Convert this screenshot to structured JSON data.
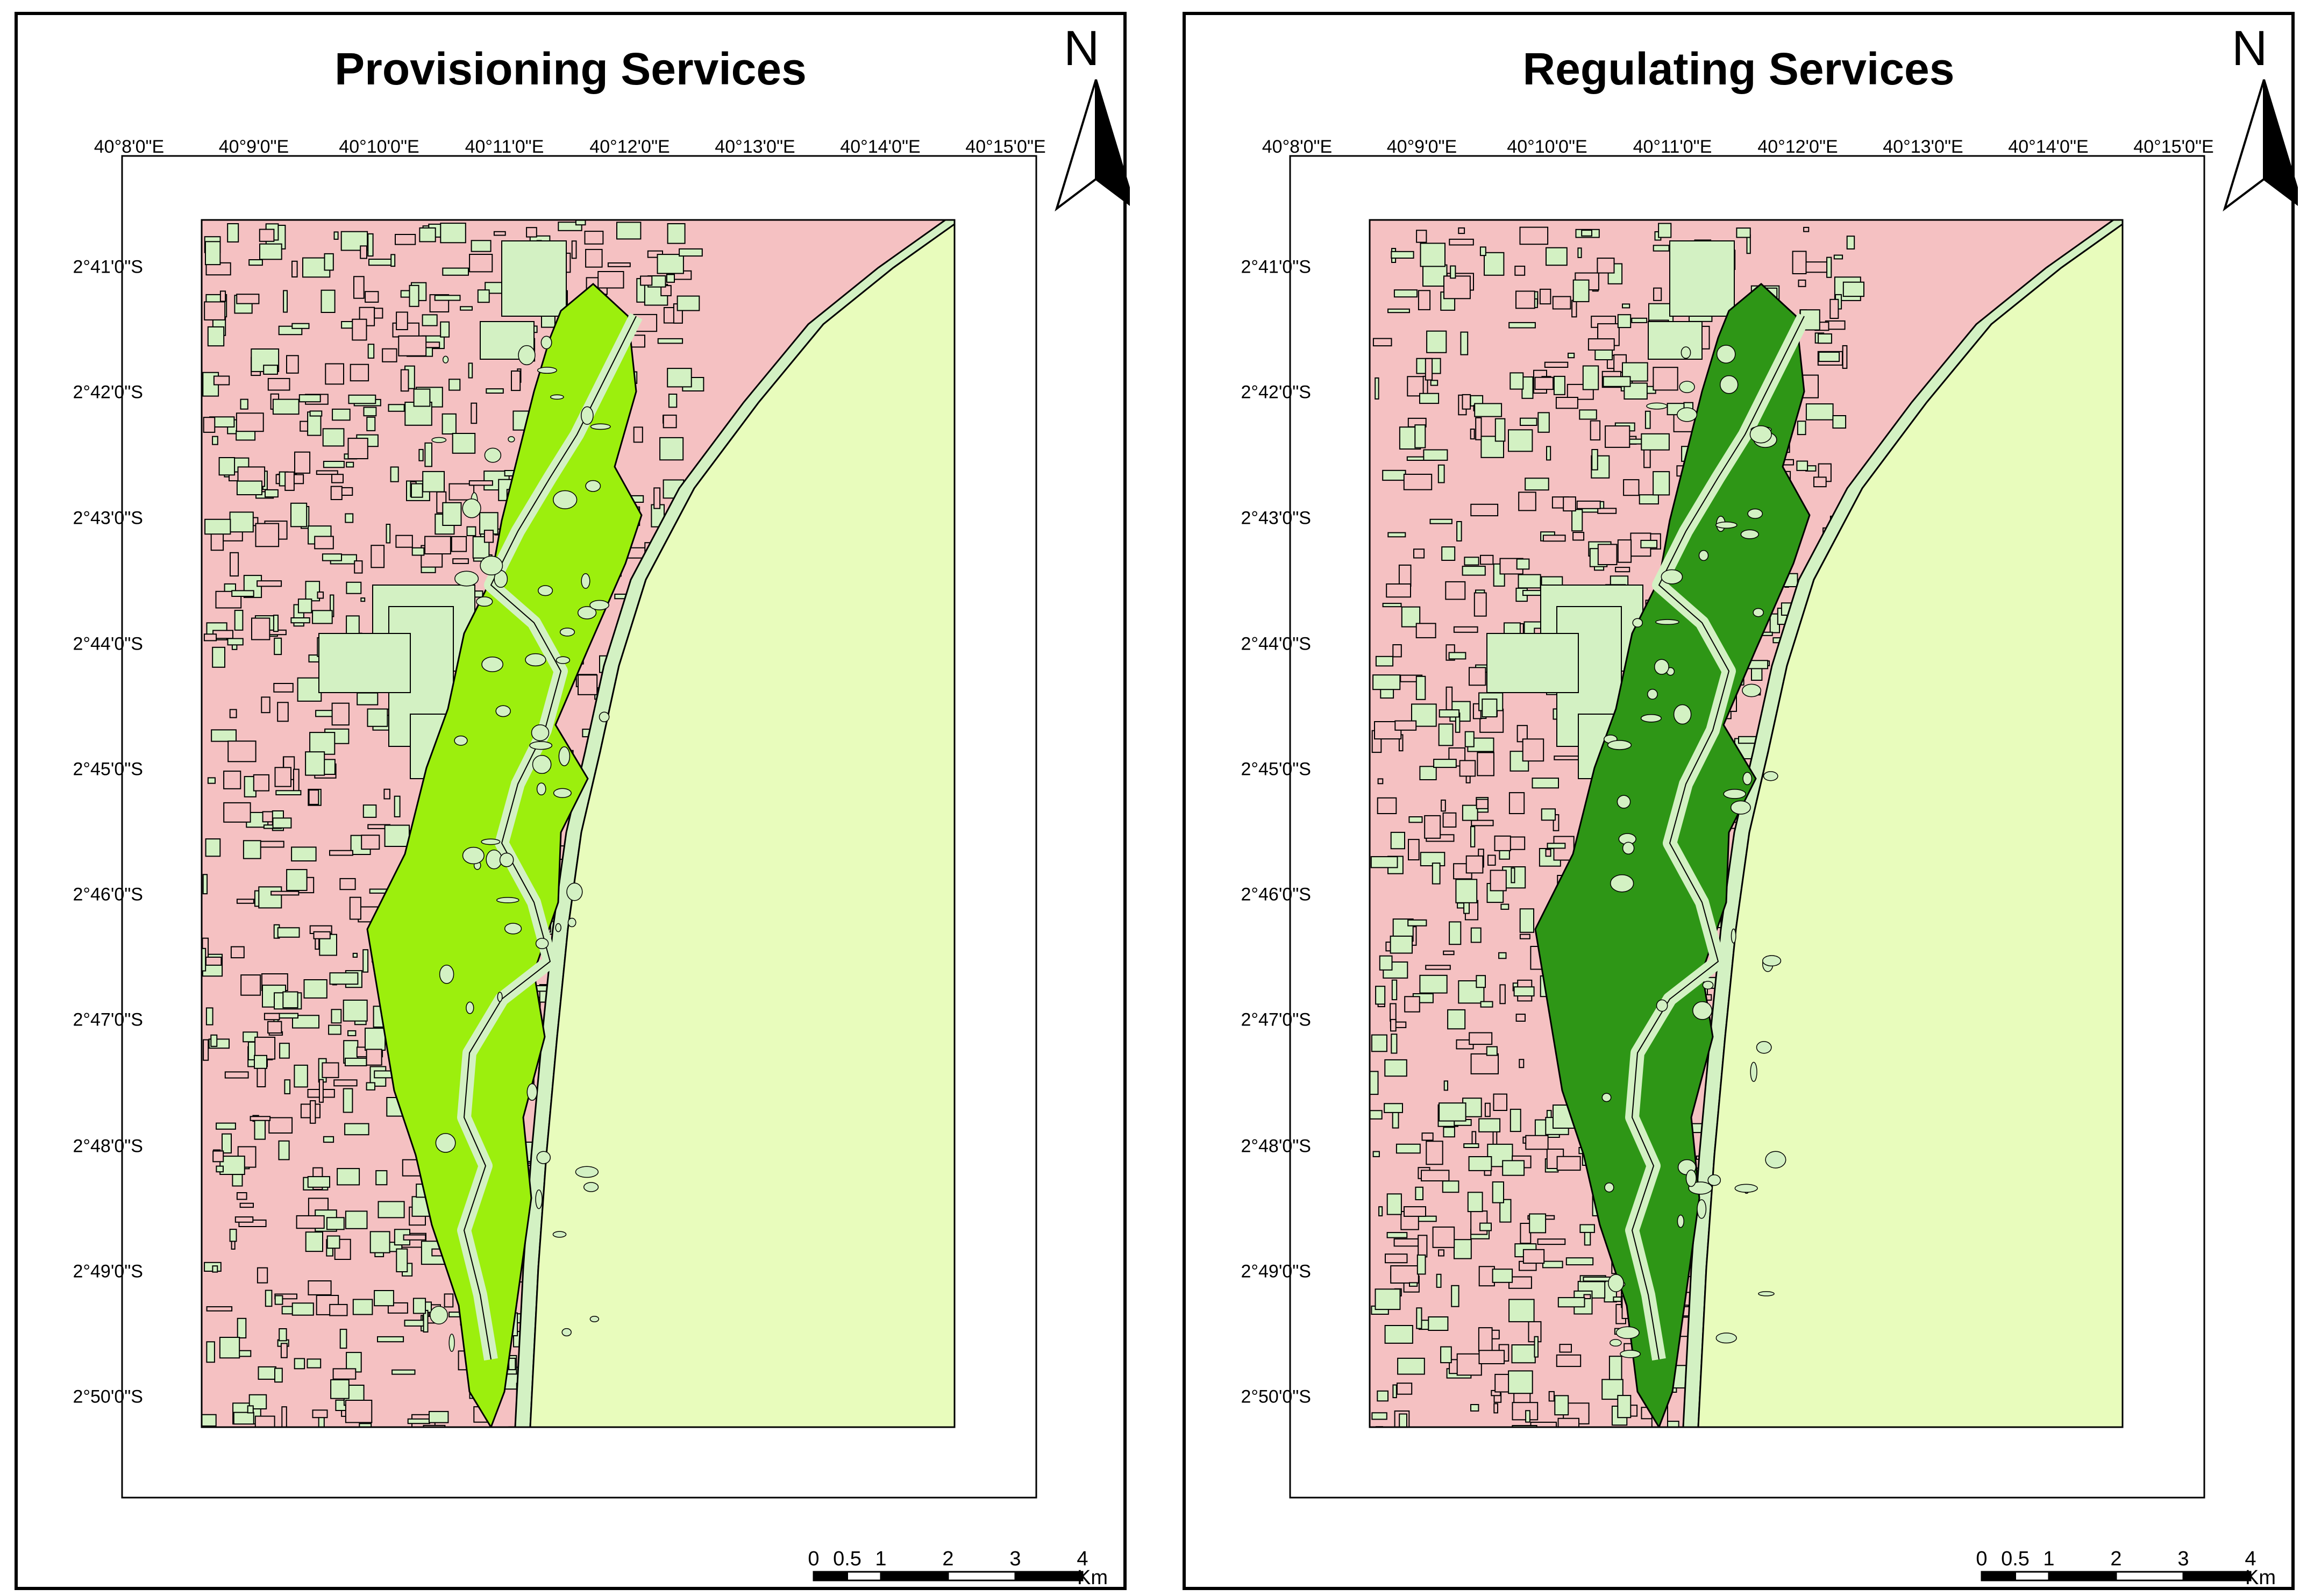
{
  "colors": {
    "land": "#f5c1c2",
    "land_patch": "#d3f1c3",
    "ocean": "#e8fcbc",
    "provisioning_mangrove": "#9cef0d",
    "regulating_mangrove": "#2e9616",
    "outline": "#000000"
  },
  "panels": [
    {
      "id": "provisioning",
      "title": "Provisioning Services",
      "mangrove_color": "#9cef0d",
      "north_label": "N",
      "lon_labels": [
        "40°8'0\"E",
        "40°9'0\"E",
        "40°10'0\"E",
        "40°11'0\"E",
        "40°12'0\"E",
        "40°13'0\"E",
        "40°14'0\"E",
        "40°15'0\"E"
      ],
      "lat_labels": [
        "2°41'0\"S",
        "2°42'0\"S",
        "2°43'0\"S",
        "2°44'0\"S",
        "2°45'0\"S",
        "2°46'0\"S",
        "2°47'0\"S",
        "2°48'0\"S",
        "2°49'0\"S",
        "2°50'0\"S"
      ],
      "scale_labels": [
        "0",
        "0.5",
        "1",
        "2",
        "3",
        "4"
      ],
      "scale_unit": "Km"
    },
    {
      "id": "regulating",
      "title": "Regulating Services",
      "mangrove_color": "#2e9616",
      "north_label": "N",
      "lon_labels": [
        "40°8'0\"E",
        "40°9'0\"E",
        "40°10'0\"E",
        "40°11'0\"E",
        "40°12'0\"E",
        "40°13'0\"E",
        "40°14'0\"E",
        "40°15'0\"E"
      ],
      "lat_labels": [
        "2°41'0\"S",
        "2°42'0\"S",
        "2°43'0\"S",
        "2°44'0\"S",
        "2°45'0\"S",
        "2°46'0\"S",
        "2°47'0\"S",
        "2°48'0\"S",
        "2°49'0\"S",
        "2°50'0\"S"
      ],
      "scale_labels": [
        "0",
        "0.5",
        "1",
        "2",
        "3",
        "4"
      ],
      "scale_unit": "Km"
    }
  ]
}
